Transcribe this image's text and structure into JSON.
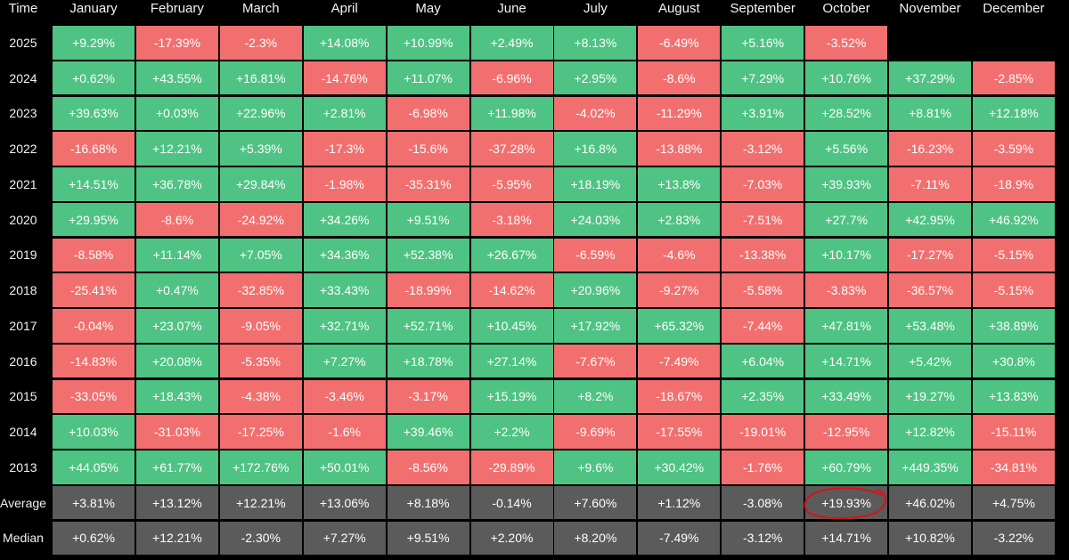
{
  "table": {
    "time_header": "Time",
    "months": [
      "January",
      "February",
      "March",
      "April",
      "May",
      "June",
      "July",
      "August",
      "September",
      "October",
      "November",
      "December"
    ],
    "rows": [
      {
        "year": "2025",
        "values": [
          "+9.29%",
          "-17.39%",
          "-2.3%",
          "+14.08%",
          "+10.99%",
          "+2.49%",
          "+8.13%",
          "-6.49%",
          "+5.16%",
          "-3.52%",
          "",
          ""
        ]
      },
      {
        "year": "2024",
        "values": [
          "+0.62%",
          "+43.55%",
          "+16.81%",
          "-14.76%",
          "+11.07%",
          "-6.96%",
          "+2.95%",
          "-8.6%",
          "+7.29%",
          "+10.76%",
          "+37.29%",
          "-2.85%"
        ]
      },
      {
        "year": "2023",
        "values": [
          "+39.63%",
          "+0.03%",
          "+22.96%",
          "+2.81%",
          "-6.98%",
          "+11.98%",
          "-4.02%",
          "-11.29%",
          "+3.91%",
          "+28.52%",
          "+8.81%",
          "+12.18%"
        ]
      },
      {
        "year": "2022",
        "values": [
          "-16.68%",
          "+12.21%",
          "+5.39%",
          "-17.3%",
          "-15.6%",
          "-37.28%",
          "+16.8%",
          "-13.88%",
          "-3.12%",
          "+5.56%",
          "-16.23%",
          "-3.59%"
        ]
      },
      {
        "year": "2021",
        "values": [
          "+14.51%",
          "+36.78%",
          "+29.84%",
          "-1.98%",
          "-35.31%",
          "-5.95%",
          "+18.19%",
          "+13.8%",
          "-7.03%",
          "+39.93%",
          "-7.11%",
          "-18.9%"
        ]
      },
      {
        "year": "2020",
        "values": [
          "+29.95%",
          "-8.6%",
          "-24.92%",
          "+34.26%",
          "+9.51%",
          "-3.18%",
          "+24.03%",
          "+2.83%",
          "-7.51%",
          "+27.7%",
          "+42.95%",
          "+46.92%"
        ]
      },
      {
        "year": "2019",
        "values": [
          "-8.58%",
          "+11.14%",
          "+7.05%",
          "+34.36%",
          "+52.38%",
          "+26.67%",
          "-6.59%",
          "-4.6%",
          "-13.38%",
          "+10.17%",
          "-17.27%",
          "-5.15%"
        ]
      },
      {
        "year": "2018",
        "values": [
          "-25.41%",
          "+0.47%",
          "-32.85%",
          "+33.43%",
          "-18.99%",
          "-14.62%",
          "+20.96%",
          "-9.27%",
          "-5.58%",
          "-3.83%",
          "-36.57%",
          "-5.15%"
        ]
      },
      {
        "year": "2017",
        "values": [
          "-0.04%",
          "+23.07%",
          "-9.05%",
          "+32.71%",
          "+52.71%",
          "+10.45%",
          "+17.92%",
          "+65.32%",
          "-7.44%",
          "+47.81%",
          "+53.48%",
          "+38.89%"
        ]
      },
      {
        "year": "2016",
        "values": [
          "-14.83%",
          "+20.08%",
          "-5.35%",
          "+7.27%",
          "+18.78%",
          "+27.14%",
          "-7.67%",
          "-7.49%",
          "+6.04%",
          "+14.71%",
          "+5.42%",
          "+30.8%"
        ]
      },
      {
        "year": "2015",
        "values": [
          "-33.05%",
          "+18.43%",
          "-4.38%",
          "-3.46%",
          "-3.17%",
          "+15.19%",
          "+8.2%",
          "-18.67%",
          "+2.35%",
          "+33.49%",
          "+19.27%",
          "+13.83%"
        ]
      },
      {
        "year": "2014",
        "values": [
          "+10.03%",
          "-31.03%",
          "-17.25%",
          "-1.6%",
          "+39.46%",
          "+2.2%",
          "-9.69%",
          "-17.55%",
          "-19.01%",
          "-12.95%",
          "+12.82%",
          "-15.11%"
        ]
      },
      {
        "year": "2013",
        "values": [
          "+44.05%",
          "+61.77%",
          "+172.76%",
          "+50.01%",
          "-8.56%",
          "-29.89%",
          "+9.6%",
          "+30.42%",
          "-1.76%",
          "+60.79%",
          "+449.35%",
          "-34.81%"
        ]
      }
    ],
    "stats": [
      {
        "label": "Average",
        "values": [
          "+3.81%",
          "+13.12%",
          "+12.21%",
          "+13.06%",
          "+8.18%",
          "-0.14%",
          "+7.60%",
          "+1.12%",
          "-3.08%",
          "+19.93%",
          "+46.02%",
          "+4.75%"
        ]
      },
      {
        "label": "Median",
        "values": [
          "+0.62%",
          "+12.21%",
          "-2.30%",
          "+7.27%",
          "+9.51%",
          "+2.20%",
          "+8.20%",
          "-7.49%",
          "-3.12%",
          "+14.71%",
          "+10.82%",
          "-3.22%"
        ]
      }
    ]
  },
  "colors": {
    "positive": "#4fc383",
    "negative": "#f1706f",
    "stat_bg": "#5b5b5b",
    "annotation": "#d8101a",
    "background": "#000000"
  },
  "annotation": {
    "target": "Average-October",
    "shape": "hand-drawn-circle"
  },
  "chart_data": {
    "type": "table",
    "columns": [
      "Time",
      "January",
      "February",
      "March",
      "April",
      "May",
      "June",
      "July",
      "August",
      "September",
      "October",
      "November",
      "December"
    ],
    "row_labels": [
      "2025",
      "2024",
      "2023",
      "2022",
      "2021",
      "2020",
      "2019",
      "2018",
      "2017",
      "2016",
      "2015",
      "2014",
      "2013",
      "Average",
      "Median"
    ]
  }
}
